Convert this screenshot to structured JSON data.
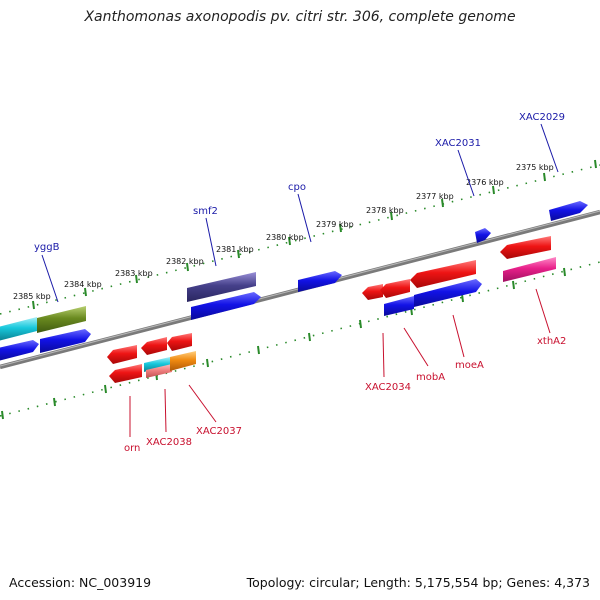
{
  "title": "Xanthomonas axonopodis pv. citri str. 306, complete genome",
  "footer": {
    "accession": "Accession: NC_003919",
    "topology": "Topology: circular; Length: 5,175,554 bp; Genes: 4,373"
  },
  "ticks": [
    {
      "label": "2385 kbp"
    },
    {
      "label": "2384 kbp"
    },
    {
      "label": "2383 kbp"
    },
    {
      "label": "2382 kbp"
    },
    {
      "label": "2381 kbp"
    },
    {
      "label": "2380 kbp"
    },
    {
      "label": "2379 kbp"
    },
    {
      "label": "2378 kbp"
    },
    {
      "label": "2377 kbp"
    },
    {
      "label": "2376 kbp"
    },
    {
      "label": "2375 kbp"
    }
  ],
  "gene_labels": [
    {
      "name": "yggB",
      "strand": "forward"
    },
    {
      "name": "smf2",
      "strand": "forward"
    },
    {
      "name": "cpo",
      "strand": "forward"
    },
    {
      "name": "XAC2031",
      "strand": "forward"
    },
    {
      "name": "XAC2029",
      "strand": "forward"
    },
    {
      "name": "orn",
      "strand": "reverse"
    },
    {
      "name": "XAC2038",
      "strand": "reverse"
    },
    {
      "name": "XAC2037",
      "strand": "reverse"
    },
    {
      "name": "XAC2034",
      "strand": "reverse"
    },
    {
      "name": "mobA",
      "strand": "reverse"
    },
    {
      "name": "moeA",
      "strand": "reverse"
    },
    {
      "name": "xthA2",
      "strand": "reverse"
    }
  ],
  "colors": {
    "backbone": "#8a8a8a",
    "tick_track": "#2a8a2a",
    "forward_gene": "#1010e0",
    "reverse_gene": "#e81010",
    "forward_label": "#1a1aa8",
    "reverse_label": "#c8102e"
  }
}
